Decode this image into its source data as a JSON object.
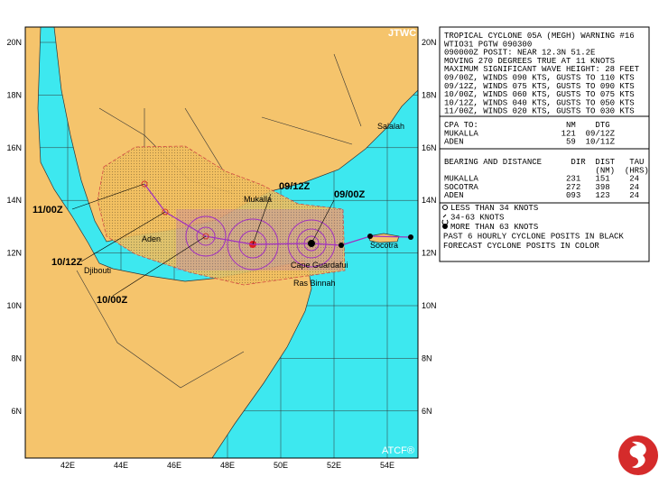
{
  "map": {
    "agency": "JTWC",
    "footer": "ATCF®",
    "lat_labels": [
      "20N",
      "18N",
      "16N",
      "14N",
      "12N",
      "10N",
      "8N",
      "6N"
    ],
    "lon_labels": [
      "42E",
      "44E",
      "46E",
      "48E",
      "50E",
      "52E",
      "54E"
    ],
    "places": [
      "Salalah",
      "Mukalla",
      "Aden",
      "Djibouti",
      "Socotra",
      "Cape Guardafui",
      "Ras Binnah"
    ],
    "fixes": [
      "09/12Z",
      "09/00Z",
      "11/00Z",
      "10/12Z",
      "10/00Z"
    ]
  },
  "panel": {
    "header": [
      "TROPICAL CYCLONE 05A (MEGH) WARNING #16",
      "WTIO31 PGTW 090300",
      "090000Z POSIT: NEAR 12.3N 51.2E",
      "MOVING 270 DEGREES TRUE AT 11 KNOTS",
      "MAXIMUM SIGNIFICANT WAVE HEIGHT: 28 FEET",
      "09/00Z, WINDS 090 KTS, GUSTS TO 110 KTS",
      "09/12Z, WINDS 075 KTS, GUSTS TO 090 KTS",
      "10/00Z, WINDS 060 KTS, GUSTS TO 075 KTS",
      "10/12Z, WINDS 040 KTS, GUSTS TO 050 KTS",
      "11/00Z, WINDS 020 KTS, GUSTS TO 030 KTS"
    ],
    "cpa": [
      "CPA TO:                  NM    DTG",
      "MUKALLA                 121  09/12Z",
      "ADEN                     59  10/11Z"
    ],
    "bearing": [
      "BEARING AND DISTANCE      DIR  DIST   TAU",
      "                               (NM)  (HRS)",
      "MUKALLA                  231   151    24",
      "SOCOTRA                  272   398    24",
      "ADEN                     093   123    24"
    ]
  },
  "legend": [
    "LESS THAN 34 KNOTS",
    "34-63 KNOTS",
    "MORE THAN 63 KNOTS",
    "PAST 6 HOURLY CYCLONE POSITS IN BLACK",
    "FORECAST CYCLONE POSITS IN COLOR"
  ]
}
